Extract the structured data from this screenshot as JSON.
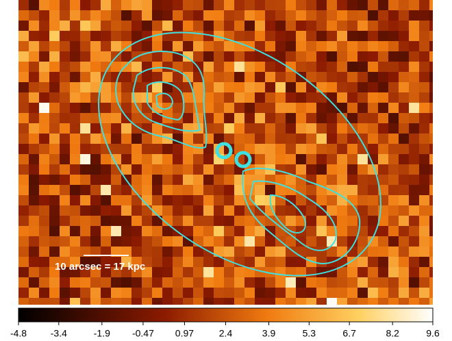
{
  "image": {
    "scale_label": "10 arcsec = 17 kpc"
  },
  "colorbar": {
    "range": [
      -4.8,
      9.6
    ],
    "ticks": [
      -4.8,
      -3.4,
      -1.9,
      -0.47,
      0.97,
      2.4,
      3.9,
      5.3,
      6.7,
      8.2,
      9.6
    ]
  }
}
